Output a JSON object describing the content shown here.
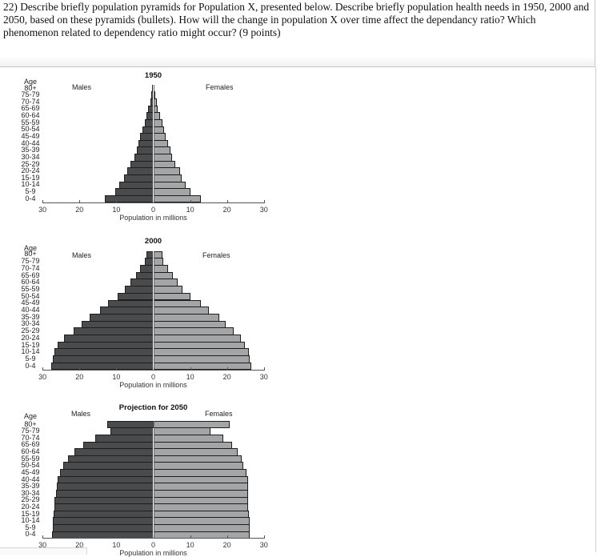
{
  "question": {
    "text": "22) Describe  briefly population pyramids for Population X, presented below.  Describe briefly population health needs in 1950, 2000 and 2050, based on these pyramids (bullets). How will the change in population X over time affect the dependancy ratio? Which phenomenon related to dependency ratio might occur? (9 points)"
  },
  "colors": {
    "male_bar": "#4a4b4d",
    "female_bar": "#a4a5a7",
    "bar_outline": "#1e1e1e"
  },
  "labels": {
    "age_header": "Age",
    "males": "Males",
    "females": "Females",
    "xlabel": "Population in millions"
  },
  "chart_data": [
    {
      "type": "bar",
      "orientation": "horizontal-pyramid",
      "title": "1950",
      "xlabel": "Population in millions",
      "ylabel": "Age",
      "xlim": [
        -30,
        30
      ],
      "x_ticks": [
        "30",
        "20",
        "10",
        "0",
        "10",
        "20",
        "30"
      ],
      "grid": false,
      "legend": [
        "Males",
        "Females"
      ],
      "categories": [
        "0-4",
        "5-9",
        "10-14",
        "15-19",
        "20-24",
        "25-29",
        "30-34",
        "35-39",
        "40-44",
        "45-49",
        "50-54",
        "55-59",
        "60-64",
        "65-69",
        "70-74",
        "75-79",
        "80+"
      ],
      "series": [
        {
          "name": "Males",
          "values": [
            13.2,
            10.3,
            9.2,
            7.9,
            7.0,
            6.1,
            5.1,
            4.5,
            4.0,
            3.5,
            2.9,
            2.3,
            1.8,
            1.4,
            0.8,
            0.5,
            0.3
          ]
        },
        {
          "name": "Females",
          "values": [
            12.8,
            10.1,
            8.7,
            7.7,
            7.2,
            5.9,
            5.0,
            4.6,
            4.1,
            3.4,
            3.0,
            2.4,
            1.8,
            1.3,
            0.9,
            0.6,
            0.3
          ]
        }
      ]
    },
    {
      "type": "bar",
      "orientation": "horizontal-pyramid",
      "title": "2000",
      "xlabel": "Population in millions",
      "ylabel": "Age",
      "xlim": [
        -30,
        30
      ],
      "x_ticks": [
        "30",
        "20",
        "10",
        "0",
        "10",
        "20",
        "30"
      ],
      "grid": false,
      "legend": [
        "Males",
        "Females"
      ],
      "categories": [
        "0-4",
        "5-9",
        "10-14",
        "15-19",
        "20-24",
        "25-29",
        "30-34",
        "35-39",
        "40-44",
        "45-49",
        "50-54",
        "55-59",
        "60-64",
        "65-69",
        "70-74",
        "75-79",
        "80+"
      ],
      "series": [
        {
          "name": "Males",
          "values": [
            27.7,
            27.3,
            26.8,
            26.0,
            24.2,
            21.6,
            19.4,
            17.3,
            14.4,
            12.2,
            9.6,
            7.7,
            6.2,
            4.6,
            3.5,
            2.2,
            1.8
          ]
        },
        {
          "name": "Females",
          "values": [
            26.5,
            26.2,
            25.9,
            24.9,
            23.8,
            21.7,
            19.7,
            17.8,
            15.0,
            12.8,
            10.1,
            8.0,
            6.7,
            5.4,
            4.1,
            2.8,
            2.5
          ]
        }
      ]
    },
    {
      "type": "bar",
      "orientation": "horizontal-pyramid",
      "title": "Projection for 2050",
      "xlabel": "Population in millions",
      "ylabel": "Age",
      "xlim": [
        -30,
        30
      ],
      "x_ticks": [
        "30",
        "20",
        "10",
        "0",
        "10",
        "20",
        "30"
      ],
      "grid": false,
      "legend": [
        "Males",
        "Females"
      ],
      "categories": [
        "0-4",
        "5-9",
        "10-14",
        "15-19",
        "20-24",
        "25-29",
        "30-34",
        "35-39",
        "40-44",
        "45-49",
        "50-54",
        "55-59",
        "60-64",
        "65-69",
        "70-74",
        "75-79",
        "80+"
      ],
      "series": [
        {
          "name": "Males",
          "values": [
            27.5,
            27.3,
            27.3,
            27.0,
            26.7,
            26.7,
            26.4,
            26.2,
            26.0,
            25.2,
            24.3,
            23.0,
            21.3,
            18.9,
            15.7,
            11.7,
            12.5
          ]
        },
        {
          "name": "Females",
          "values": [
            26.2,
            26.1,
            26.1,
            26.0,
            25.8,
            25.6,
            25.8,
            25.8,
            25.6,
            25.3,
            24.5,
            23.9,
            22.8,
            21.3,
            18.9,
            15.6,
            20.8
          ]
        }
      ]
    }
  ]
}
